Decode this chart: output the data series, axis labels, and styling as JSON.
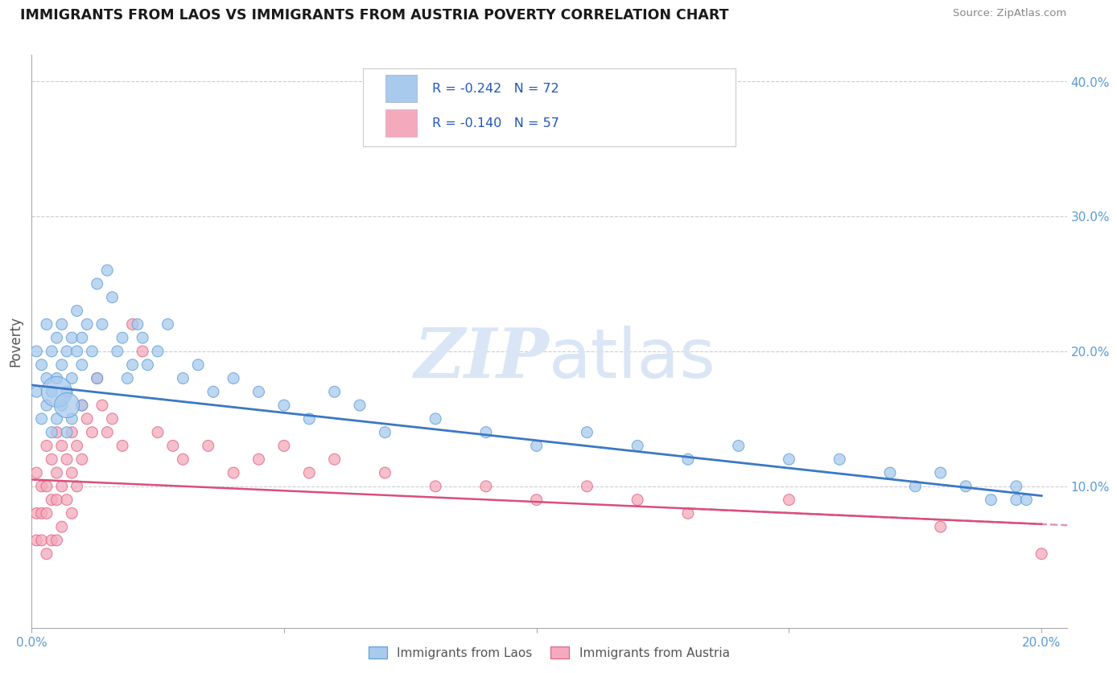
{
  "title": "IMMIGRANTS FROM LAOS VS IMMIGRANTS FROM AUSTRIA POVERTY CORRELATION CHART",
  "source_text": "Source: ZipAtlas.com",
  "ylabel": "Poverty",
  "xlim": [
    0.0,
    0.205
  ],
  "ylim": [
    -0.005,
    0.42
  ],
  "xtick_vals": [
    0.0,
    0.05,
    0.1,
    0.15,
    0.2
  ],
  "xtick_labels": [
    "0.0%",
    "",
    "",
    "",
    "20.0%"
  ],
  "ytick_vals": [
    0.1,
    0.2,
    0.3,
    0.4
  ],
  "ytick_labels": [
    "10.0%",
    "20.0%",
    "30.0%",
    "40.0%"
  ],
  "laos_R": -0.242,
  "laos_N": 72,
  "austria_R": -0.14,
  "austria_N": 57,
  "laos_color": "#a8caed",
  "austria_color": "#f4aabc",
  "laos_edge_color": "#5b9bd5",
  "austria_edge_color": "#e06080",
  "laos_line_color": "#3b78c4",
  "austria_line_color": "#d94f7a",
  "legend_R_color": "#2255bb",
  "legend_N_color": "#2255bb",
  "watermark_color": "#dae6f5",
  "background_color": "#ffffff",
  "grid_color": "#cccccc",
  "title_color": "#1a1a1a",
  "source_color": "#888888",
  "ylabel_color": "#555555",
  "tick_color": "#5b9bd5",
  "laos_x": [
    0.001,
    0.001,
    0.002,
    0.002,
    0.003,
    0.003,
    0.003,
    0.004,
    0.004,
    0.004,
    0.005,
    0.005,
    0.005,
    0.006,
    0.006,
    0.006,
    0.007,
    0.007,
    0.007,
    0.008,
    0.008,
    0.008,
    0.009,
    0.009,
    0.01,
    0.01,
    0.01,
    0.011,
    0.012,
    0.013,
    0.013,
    0.014,
    0.015,
    0.016,
    0.017,
    0.018,
    0.019,
    0.02,
    0.021,
    0.022,
    0.023,
    0.025,
    0.027,
    0.03,
    0.033,
    0.036,
    0.04,
    0.045,
    0.05,
    0.055,
    0.06,
    0.065,
    0.07,
    0.08,
    0.09,
    0.1,
    0.11,
    0.12,
    0.13,
    0.14,
    0.15,
    0.16,
    0.17,
    0.175,
    0.18,
    0.185,
    0.19,
    0.195,
    0.195,
    0.197,
    0.005,
    0.007
  ],
  "laos_y": [
    0.2,
    0.17,
    0.19,
    0.15,
    0.18,
    0.22,
    0.16,
    0.2,
    0.17,
    0.14,
    0.21,
    0.18,
    0.15,
    0.19,
    0.16,
    0.22,
    0.2,
    0.17,
    0.14,
    0.21,
    0.18,
    0.15,
    0.23,
    0.2,
    0.21,
    0.19,
    0.16,
    0.22,
    0.2,
    0.18,
    0.25,
    0.22,
    0.26,
    0.24,
    0.2,
    0.21,
    0.18,
    0.19,
    0.22,
    0.21,
    0.19,
    0.2,
    0.22,
    0.18,
    0.19,
    0.17,
    0.18,
    0.17,
    0.16,
    0.15,
    0.17,
    0.16,
    0.14,
    0.15,
    0.14,
    0.13,
    0.14,
    0.13,
    0.12,
    0.13,
    0.12,
    0.12,
    0.11,
    0.1,
    0.11,
    0.1,
    0.09,
    0.09,
    0.1,
    0.09,
    0.17,
    0.16
  ],
  "laos_sizes": [
    40,
    40,
    40,
    40,
    40,
    40,
    40,
    40,
    40,
    40,
    40,
    40,
    40,
    40,
    40,
    40,
    40,
    40,
    40,
    40,
    40,
    40,
    40,
    40,
    40,
    40,
    40,
    40,
    40,
    40,
    40,
    40,
    40,
    40,
    40,
    40,
    40,
    40,
    40,
    40,
    40,
    40,
    40,
    40,
    40,
    40,
    40,
    40,
    40,
    40,
    40,
    40,
    40,
    40,
    40,
    40,
    40,
    40,
    40,
    40,
    40,
    40,
    40,
    40,
    40,
    40,
    40,
    40,
    40,
    40,
    300,
    200
  ],
  "austria_x": [
    0.001,
    0.001,
    0.001,
    0.002,
    0.002,
    0.002,
    0.003,
    0.003,
    0.003,
    0.003,
    0.004,
    0.004,
    0.004,
    0.005,
    0.005,
    0.005,
    0.005,
    0.006,
    0.006,
    0.006,
    0.007,
    0.007,
    0.008,
    0.008,
    0.008,
    0.009,
    0.009,
    0.01,
    0.01,
    0.011,
    0.012,
    0.013,
    0.014,
    0.015,
    0.016,
    0.018,
    0.02,
    0.022,
    0.025,
    0.028,
    0.03,
    0.035,
    0.04,
    0.045,
    0.05,
    0.055,
    0.06,
    0.07,
    0.08,
    0.09,
    0.1,
    0.11,
    0.12,
    0.13,
    0.15,
    0.18,
    0.2
  ],
  "austria_y": [
    0.11,
    0.08,
    0.06,
    0.1,
    0.08,
    0.06,
    0.13,
    0.1,
    0.08,
    0.05,
    0.12,
    0.09,
    0.06,
    0.14,
    0.11,
    0.09,
    0.06,
    0.13,
    0.1,
    0.07,
    0.12,
    0.09,
    0.14,
    0.11,
    0.08,
    0.13,
    0.1,
    0.16,
    0.12,
    0.15,
    0.14,
    0.18,
    0.16,
    0.14,
    0.15,
    0.13,
    0.22,
    0.2,
    0.14,
    0.13,
    0.12,
    0.13,
    0.11,
    0.12,
    0.13,
    0.11,
    0.12,
    0.11,
    0.1,
    0.1,
    0.09,
    0.1,
    0.09,
    0.08,
    0.09,
    0.07,
    0.05
  ],
  "austria_sizes": [
    40,
    40,
    40,
    40,
    40,
    40,
    40,
    40,
    40,
    40,
    40,
    40,
    40,
    40,
    40,
    40,
    40,
    40,
    40,
    40,
    40,
    40,
    40,
    40,
    40,
    40,
    40,
    40,
    40,
    40,
    40,
    40,
    40,
    40,
    40,
    40,
    40,
    40,
    40,
    40,
    40,
    40,
    40,
    40,
    40,
    40,
    40,
    40,
    40,
    40,
    40,
    40,
    40,
    40,
    40,
    40,
    40
  ],
  "laos_line_x0": 0.0,
  "laos_line_y0": 0.175,
  "laos_line_x1": 0.2,
  "laos_line_y1": 0.093,
  "austria_line_x0": 0.0,
  "austria_line_y0": 0.105,
  "austria_line_x1": 0.2,
  "austria_line_y1": 0.072
}
